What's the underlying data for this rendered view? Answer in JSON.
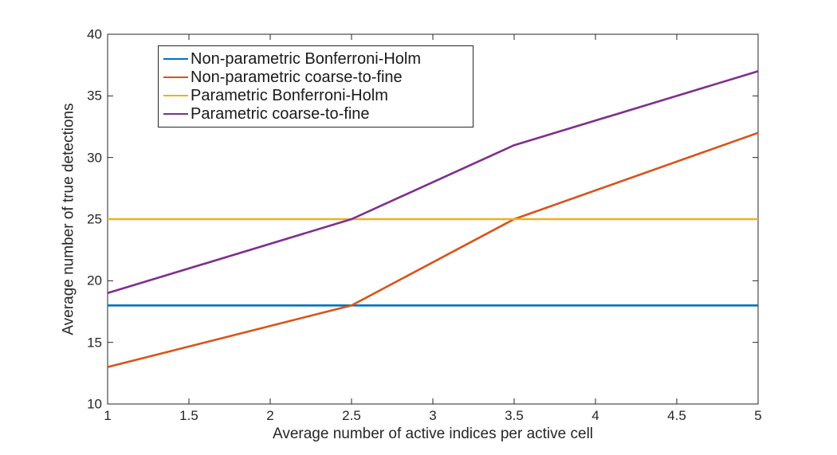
{
  "figure": {
    "background": "#ffffff",
    "axis_color": "#262626",
    "line_width": 2.6
  },
  "chart_data": {
    "type": "line",
    "title": "",
    "xlabel": "Average number of active indices per active cell",
    "ylabel": "Average number of true detections",
    "xlim": [
      1,
      5
    ],
    "ylim": [
      10,
      40
    ],
    "x_ticks": [
      1,
      1.5,
      2,
      2.5,
      3,
      3.5,
      4,
      4.5,
      5
    ],
    "y_ticks": [
      10,
      15,
      20,
      25,
      30,
      35,
      40
    ],
    "grid": false,
    "legend_position": "top-left",
    "series": [
      {
        "name": "Non-parametric Bonferroni-Holm",
        "color": "#0072BD",
        "points": [
          [
            1,
            18
          ],
          [
            5,
            18
          ]
        ]
      },
      {
        "name": "Non-parametric coarse-to-fine",
        "color": "#D95319",
        "points": [
          [
            1,
            13
          ],
          [
            2.5,
            18
          ],
          [
            3.5,
            25
          ],
          [
            5,
            32
          ]
        ]
      },
      {
        "name": "Parametric Bonferroni-Holm",
        "color": "#EDB120",
        "points": [
          [
            1,
            25
          ],
          [
            5,
            25
          ]
        ]
      },
      {
        "name": "Parametric coarse-to-fine",
        "color": "#7E2F8E",
        "points": [
          [
            1,
            19
          ],
          [
            2.5,
            25
          ],
          [
            3.5,
            31
          ],
          [
            5,
            37
          ]
        ]
      }
    ]
  }
}
